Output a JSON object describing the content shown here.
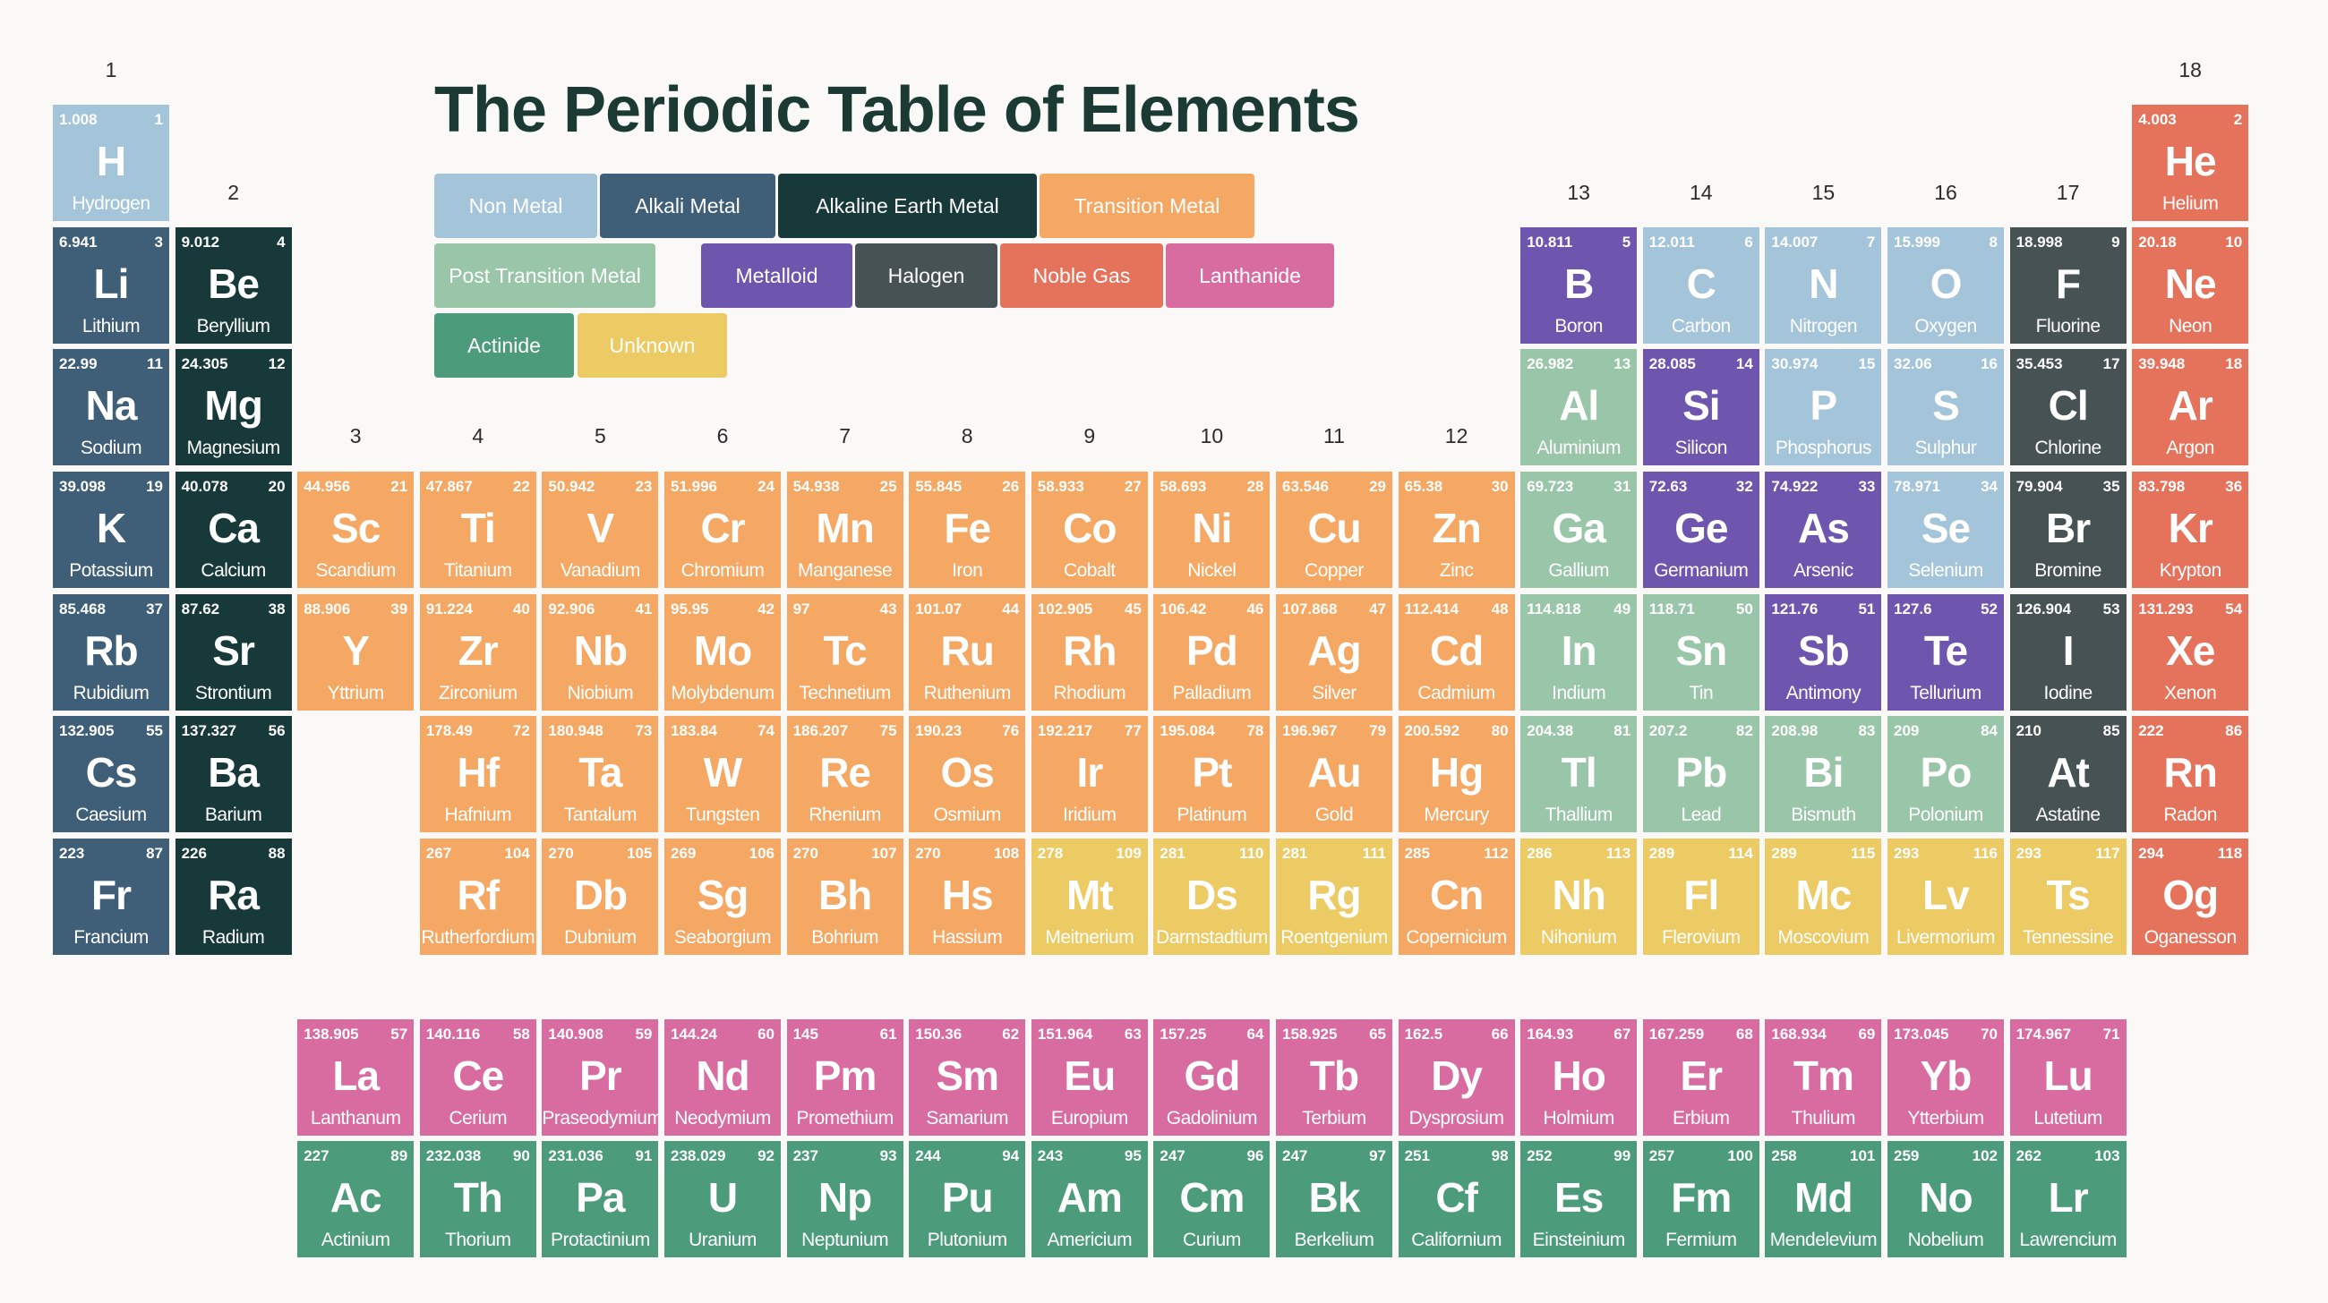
{
  "title": "The Periodic Table of Elements",
  "colors": {
    "non_metal": "#a4c5d9",
    "alkali_metal": "#3f5e78",
    "alkaline_earth_metal": "#17393a",
    "transition_metal": "#f4a863",
    "post_transition_metal": "#99c5a8",
    "metalloid": "#6e55ae",
    "halogen": "#465253",
    "noble_gas": "#e5735c",
    "lanthanide": "#d86ca1",
    "actinide": "#4c9b7a",
    "unknown": "#ecca64"
  },
  "legend": [
    {
      "label": "Non Metal",
      "cat": "non_metal"
    },
    {
      "label": "Alkali Metal",
      "cat": "alkali_metal"
    },
    {
      "label": "Alkaline Earth Metal",
      "cat": "alkaline_earth_metal"
    },
    {
      "label": "Transition Metal",
      "cat": "transition_metal"
    },
    {
      "label": "Post Transition Metal",
      "cat": "post_transition_metal"
    },
    {
      "label": "Metalloid",
      "cat": "metalloid"
    },
    {
      "label": "Halogen",
      "cat": "halogen"
    },
    {
      "label": "Noble Gas",
      "cat": "noble_gas"
    },
    {
      "label": "Lanthanide",
      "cat": "lanthanide"
    },
    {
      "label": "Actinide",
      "cat": "actinide"
    },
    {
      "label": "Unknown",
      "cat": "unknown"
    }
  ],
  "group_labels": [
    "1",
    "2",
    "3",
    "4",
    "5",
    "6",
    "7",
    "8",
    "9",
    "10",
    "11",
    "12",
    "13",
    "14",
    "15",
    "16",
    "17",
    "18"
  ],
  "elements": [
    {
      "n": 1,
      "s": "H",
      "name": "Hydrogen",
      "m": "1.008",
      "cat": "non_metal",
      "g": 1,
      "p": 1
    },
    {
      "n": 2,
      "s": "He",
      "name": "Helium",
      "m": "4.003",
      "cat": "noble_gas",
      "g": 18,
      "p": 1
    },
    {
      "n": 3,
      "s": "Li",
      "name": "Lithium",
      "m": "6.941",
      "cat": "alkali_metal",
      "g": 1,
      "p": 2
    },
    {
      "n": 4,
      "s": "Be",
      "name": "Beryllium",
      "m": "9.012",
      "cat": "alkaline_earth_metal",
      "g": 2,
      "p": 2
    },
    {
      "n": 5,
      "s": "B",
      "name": "Boron",
      "m": "10.811",
      "cat": "metalloid",
      "g": 13,
      "p": 2
    },
    {
      "n": 6,
      "s": "C",
      "name": "Carbon",
      "m": "12.011",
      "cat": "non_metal",
      "g": 14,
      "p": 2
    },
    {
      "n": 7,
      "s": "N",
      "name": "Nitrogen",
      "m": "14.007",
      "cat": "non_metal",
      "g": 15,
      "p": 2
    },
    {
      "n": 8,
      "s": "O",
      "name": "Oxygen",
      "m": "15.999",
      "cat": "non_metal",
      "g": 16,
      "p": 2
    },
    {
      "n": 9,
      "s": "F",
      "name": "Fluorine",
      "m": "18.998",
      "cat": "halogen",
      "g": 17,
      "p": 2
    },
    {
      "n": 10,
      "s": "Ne",
      "name": "Neon",
      "m": "20.18",
      "cat": "noble_gas",
      "g": 18,
      "p": 2
    },
    {
      "n": 11,
      "s": "Na",
      "name": "Sodium",
      "m": "22.99",
      "cat": "alkali_metal",
      "g": 1,
      "p": 3
    },
    {
      "n": 12,
      "s": "Mg",
      "name": "Magnesium",
      "m": "24.305",
      "cat": "alkaline_earth_metal",
      "g": 2,
      "p": 3
    },
    {
      "n": 13,
      "s": "Al",
      "name": "Aluminium",
      "m": "26.982",
      "cat": "post_transition_metal",
      "g": 13,
      "p": 3
    },
    {
      "n": 14,
      "s": "Si",
      "name": "Silicon",
      "m": "28.085",
      "cat": "metalloid",
      "g": 14,
      "p": 3
    },
    {
      "n": 15,
      "s": "P",
      "name": "Phosphorus",
      "m": "30.974",
      "cat": "non_metal",
      "g": 15,
      "p": 3
    },
    {
      "n": 16,
      "s": "S",
      "name": "Sulphur",
      "m": "32.06",
      "cat": "non_metal",
      "g": 16,
      "p": 3
    },
    {
      "n": 17,
      "s": "Cl",
      "name": "Chlorine",
      "m": "35.453",
      "cat": "halogen",
      "g": 17,
      "p": 3
    },
    {
      "n": 18,
      "s": "Ar",
      "name": "Argon",
      "m": "39.948",
      "cat": "noble_gas",
      "g": 18,
      "p": 3
    },
    {
      "n": 19,
      "s": "K",
      "name": "Potassium",
      "m": "39.098",
      "cat": "alkali_metal",
      "g": 1,
      "p": 4
    },
    {
      "n": 20,
      "s": "Ca",
      "name": "Calcium",
      "m": "40.078",
      "cat": "alkaline_earth_metal",
      "g": 2,
      "p": 4
    },
    {
      "n": 21,
      "s": "Sc",
      "name": "Scandium",
      "m": "44.956",
      "cat": "transition_metal",
      "g": 3,
      "p": 4
    },
    {
      "n": 22,
      "s": "Ti",
      "name": "Titanium",
      "m": "47.867",
      "cat": "transition_metal",
      "g": 4,
      "p": 4
    },
    {
      "n": 23,
      "s": "V",
      "name": "Vanadium",
      "m": "50.942",
      "cat": "transition_metal",
      "g": 5,
      "p": 4
    },
    {
      "n": 24,
      "s": "Cr",
      "name": "Chromium",
      "m": "51.996",
      "cat": "transition_metal",
      "g": 6,
      "p": 4
    },
    {
      "n": 25,
      "s": "Mn",
      "name": "Manganese",
      "m": "54.938",
      "cat": "transition_metal",
      "g": 7,
      "p": 4
    },
    {
      "n": 26,
      "s": "Fe",
      "name": "Iron",
      "m": "55.845",
      "cat": "transition_metal",
      "g": 8,
      "p": 4
    },
    {
      "n": 27,
      "s": "Co",
      "name": "Cobalt",
      "m": "58.933",
      "cat": "transition_metal",
      "g": 9,
      "p": 4
    },
    {
      "n": 28,
      "s": "Ni",
      "name": "Nickel",
      "m": "58.693",
      "cat": "transition_metal",
      "g": 10,
      "p": 4
    },
    {
      "n": 29,
      "s": "Cu",
      "name": "Copper",
      "m": "63.546",
      "cat": "transition_metal",
      "g": 11,
      "p": 4
    },
    {
      "n": 30,
      "s": "Zn",
      "name": "Zinc",
      "m": "65.38",
      "cat": "transition_metal",
      "g": 12,
      "p": 4
    },
    {
      "n": 31,
      "s": "Ga",
      "name": "Gallium",
      "m": "69.723",
      "cat": "post_transition_metal",
      "g": 13,
      "p": 4
    },
    {
      "n": 32,
      "s": "Ge",
      "name": "Germanium",
      "m": "72.63",
      "cat": "metalloid",
      "g": 14,
      "p": 4
    },
    {
      "n": 33,
      "s": "As",
      "name": "Arsenic",
      "m": "74.922",
      "cat": "metalloid",
      "g": 15,
      "p": 4
    },
    {
      "n": 34,
      "s": "Se",
      "name": "Selenium",
      "m": "78.971",
      "cat": "non_metal",
      "g": 16,
      "p": 4
    },
    {
      "n": 35,
      "s": "Br",
      "name": "Bromine",
      "m": "79.904",
      "cat": "halogen",
      "g": 17,
      "p": 4
    },
    {
      "n": 36,
      "s": "Kr",
      "name": "Krypton",
      "m": "83.798",
      "cat": "noble_gas",
      "g": 18,
      "p": 4
    },
    {
      "n": 37,
      "s": "Rb",
      "name": "Rubidium",
      "m": "85.468",
      "cat": "alkali_metal",
      "g": 1,
      "p": 5
    },
    {
      "n": 38,
      "s": "Sr",
      "name": "Strontium",
      "m": "87.62",
      "cat": "alkaline_earth_metal",
      "g": 2,
      "p": 5
    },
    {
      "n": 39,
      "s": "Y",
      "name": "Yttrium",
      "m": "88.906",
      "cat": "transition_metal",
      "g": 3,
      "p": 5
    },
    {
      "n": 40,
      "s": "Zr",
      "name": "Zirconium",
      "m": "91.224",
      "cat": "transition_metal",
      "g": 4,
      "p": 5
    },
    {
      "n": 41,
      "s": "Nb",
      "name": "Niobium",
      "m": "92.906",
      "cat": "transition_metal",
      "g": 5,
      "p": 5
    },
    {
      "n": 42,
      "s": "Mo",
      "name": "Molybdenum",
      "m": "95.95",
      "cat": "transition_metal",
      "g": 6,
      "p": 5
    },
    {
      "n": 43,
      "s": "Tc",
      "name": "Technetium",
      "m": "97",
      "cat": "transition_metal",
      "g": 7,
      "p": 5
    },
    {
      "n": 44,
      "s": "Ru",
      "name": "Ruthenium",
      "m": "101.07",
      "cat": "transition_metal",
      "g": 8,
      "p": 5
    },
    {
      "n": 45,
      "s": "Rh",
      "name": "Rhodium",
      "m": "102.905",
      "cat": "transition_metal",
      "g": 9,
      "p": 5
    },
    {
      "n": 46,
      "s": "Pd",
      "name": "Palladium",
      "m": "106.42",
      "cat": "transition_metal",
      "g": 10,
      "p": 5
    },
    {
      "n": 47,
      "s": "Ag",
      "name": "Silver",
      "m": "107.868",
      "cat": "transition_metal",
      "g": 11,
      "p": 5
    },
    {
      "n": 48,
      "s": "Cd",
      "name": "Cadmium",
      "m": "112.414",
      "cat": "transition_metal",
      "g": 12,
      "p": 5
    },
    {
      "n": 49,
      "s": "In",
      "name": "Indium",
      "m": "114.818",
      "cat": "post_transition_metal",
      "g": 13,
      "p": 5
    },
    {
      "n": 50,
      "s": "Sn",
      "name": "Tin",
      "m": "118.71",
      "cat": "post_transition_metal",
      "g": 14,
      "p": 5
    },
    {
      "n": 51,
      "s": "Sb",
      "name": "Antimony",
      "m": "121.76",
      "cat": "metalloid",
      "g": 15,
      "p": 5
    },
    {
      "n": 52,
      "s": "Te",
      "name": "Tellurium",
      "m": "127.6",
      "cat": "metalloid",
      "g": 16,
      "p": 5
    },
    {
      "n": 53,
      "s": "I",
      "name": "Iodine",
      "m": "126.904",
      "cat": "halogen",
      "g": 17,
      "p": 5
    },
    {
      "n": 54,
      "s": "Xe",
      "name": "Xenon",
      "m": "131.293",
      "cat": "noble_gas",
      "g": 18,
      "p": 5
    },
    {
      "n": 55,
      "s": "Cs",
      "name": "Caesium",
      "m": "132.905",
      "cat": "alkali_metal",
      "g": 1,
      "p": 6
    },
    {
      "n": 56,
      "s": "Ba",
      "name": "Barium",
      "m": "137.327",
      "cat": "alkaline_earth_metal",
      "g": 2,
      "p": 6
    },
    {
      "n": 72,
      "s": "Hf",
      "name": "Hafnium",
      "m": "178.49",
      "cat": "transition_metal",
      "g": 4,
      "p": 6
    },
    {
      "n": 73,
      "s": "Ta",
      "name": "Tantalum",
      "m": "180.948",
      "cat": "transition_metal",
      "g": 5,
      "p": 6
    },
    {
      "n": 74,
      "s": "W",
      "name": "Tungsten",
      "m": "183.84",
      "cat": "transition_metal",
      "g": 6,
      "p": 6
    },
    {
      "n": 75,
      "s": "Re",
      "name": "Rhenium",
      "m": "186.207",
      "cat": "transition_metal",
      "g": 7,
      "p": 6
    },
    {
      "n": 76,
      "s": "Os",
      "name": "Osmium",
      "m": "190.23",
      "cat": "transition_metal",
      "g": 8,
      "p": 6
    },
    {
      "n": 77,
      "s": "Ir",
      "name": "Iridium",
      "m": "192.217",
      "cat": "transition_metal",
      "g": 9,
      "p": 6
    },
    {
      "n": 78,
      "s": "Pt",
      "name": "Platinum",
      "m": "195.084",
      "cat": "transition_metal",
      "g": 10,
      "p": 6
    },
    {
      "n": 79,
      "s": "Au",
      "name": "Gold",
      "m": "196.967",
      "cat": "transition_metal",
      "g": 11,
      "p": 6
    },
    {
      "n": 80,
      "s": "Hg",
      "name": "Mercury",
      "m": "200.592",
      "cat": "transition_metal",
      "g": 12,
      "p": 6
    },
    {
      "n": 81,
      "s": "Tl",
      "name": "Thallium",
      "m": "204.38",
      "cat": "post_transition_metal",
      "g": 13,
      "p": 6
    },
    {
      "n": 82,
      "s": "Pb",
      "name": "Lead",
      "m": "207.2",
      "cat": "post_transition_metal",
      "g": 14,
      "p": 6
    },
    {
      "n": 83,
      "s": "Bi",
      "name": "Bismuth",
      "m": "208.98",
      "cat": "post_transition_metal",
      "g": 15,
      "p": 6
    },
    {
      "n": 84,
      "s": "Po",
      "name": "Polonium",
      "m": "209",
      "cat": "post_transition_metal",
      "g": 16,
      "p": 6
    },
    {
      "n": 85,
      "s": "At",
      "name": "Astatine",
      "m": "210",
      "cat": "halogen",
      "g": 17,
      "p": 6
    },
    {
      "n": 86,
      "s": "Rn",
      "name": "Radon",
      "m": "222",
      "cat": "noble_gas",
      "g": 18,
      "p": 6
    },
    {
      "n": 87,
      "s": "Fr",
      "name": "Francium",
      "m": "223",
      "cat": "alkali_metal",
      "g": 1,
      "p": 7
    },
    {
      "n": 88,
      "s": "Ra",
      "name": "Radium",
      "m": "226",
      "cat": "alkaline_earth_metal",
      "g": 2,
      "p": 7
    },
    {
      "n": 104,
      "s": "Rf",
      "name": "Rutherfordium",
      "m": "267",
      "cat": "transition_metal",
      "g": 4,
      "p": 7
    },
    {
      "n": 105,
      "s": "Db",
      "name": "Dubnium",
      "m": "270",
      "cat": "transition_metal",
      "g": 5,
      "p": 7
    },
    {
      "n": 106,
      "s": "Sg",
      "name": "Seaborgium",
      "m": "269",
      "cat": "transition_metal",
      "g": 6,
      "p": 7
    },
    {
      "n": 107,
      "s": "Bh",
      "name": "Bohrium",
      "m": "270",
      "cat": "transition_metal",
      "g": 7,
      "p": 7
    },
    {
      "n": 108,
      "s": "Hs",
      "name": "Hassium",
      "m": "270",
      "cat": "transition_metal",
      "g": 8,
      "p": 7
    },
    {
      "n": 109,
      "s": "Mt",
      "name": "Meitnerium",
      "m": "278",
      "cat": "unknown",
      "g": 9,
      "p": 7
    },
    {
      "n": 110,
      "s": "Ds",
      "name": "Darmstadtium",
      "m": "281",
      "cat": "unknown",
      "g": 10,
      "p": 7
    },
    {
      "n": 111,
      "s": "Rg",
      "name": "Roentgenium",
      "m": "281",
      "cat": "unknown",
      "g": 11,
      "p": 7
    },
    {
      "n": 112,
      "s": "Cn",
      "name": "Copernicium",
      "m": "285",
      "cat": "transition_metal",
      "g": 12,
      "p": 7
    },
    {
      "n": 113,
      "s": "Nh",
      "name": "Nihonium",
      "m": "286",
      "cat": "unknown",
      "g": 13,
      "p": 7
    },
    {
      "n": 114,
      "s": "Fl",
      "name": "Flerovium",
      "m": "289",
      "cat": "unknown",
      "g": 14,
      "p": 7
    },
    {
      "n": 115,
      "s": "Mc",
      "name": "Moscovium",
      "m": "289",
      "cat": "unknown",
      "g": 15,
      "p": 7
    },
    {
      "n": 116,
      "s": "Lv",
      "name": "Livermorium",
      "m": "293",
      "cat": "unknown",
      "g": 16,
      "p": 7
    },
    {
      "n": 117,
      "s": "Ts",
      "name": "Tennessine",
      "m": "293",
      "cat": "unknown",
      "g": 17,
      "p": 7
    },
    {
      "n": 118,
      "s": "Og",
      "name": "Oganesson",
      "m": "294",
      "cat": "noble_gas",
      "g": 18,
      "p": 7
    },
    {
      "n": 57,
      "s": "La",
      "name": "Lanthanum",
      "m": "138.905",
      "cat": "lanthanide",
      "g": 3,
      "p": 8
    },
    {
      "n": 58,
      "s": "Ce",
      "name": "Cerium",
      "m": "140.116",
      "cat": "lanthanide",
      "g": 4,
      "p": 8
    },
    {
      "n": 59,
      "s": "Pr",
      "name": "Praseodymium",
      "m": "140.908",
      "cat": "lanthanide",
      "g": 5,
      "p": 8
    },
    {
      "n": 60,
      "s": "Nd",
      "name": "Neodymium",
      "m": "144.24",
      "cat": "lanthanide",
      "g": 6,
      "p": 8
    },
    {
      "n": 61,
      "s": "Pm",
      "name": "Promethium",
      "m": "145",
      "cat": "lanthanide",
      "g": 7,
      "p": 8
    },
    {
      "n": 62,
      "s": "Sm",
      "name": "Samarium",
      "m": "150.36",
      "cat": "lanthanide",
      "g": 8,
      "p": 8
    },
    {
      "n": 63,
      "s": "Eu",
      "name": "Europium",
      "m": "151.964",
      "cat": "lanthanide",
      "g": 9,
      "p": 8
    },
    {
      "n": 64,
      "s": "Gd",
      "name": "Gadolinium",
      "m": "157.25",
      "cat": "lanthanide",
      "g": 10,
      "p": 8
    },
    {
      "n": 65,
      "s": "Tb",
      "name": "Terbium",
      "m": "158.925",
      "cat": "lanthanide",
      "g": 11,
      "p": 8
    },
    {
      "n": 66,
      "s": "Dy",
      "name": "Dysprosium",
      "m": "162.5",
      "cat": "lanthanide",
      "g": 12,
      "p": 8
    },
    {
      "n": 67,
      "s": "Ho",
      "name": "Holmium",
      "m": "164.93",
      "cat": "lanthanide",
      "g": 13,
      "p": 8
    },
    {
      "n": 68,
      "s": "Er",
      "name": "Erbium",
      "m": "167.259",
      "cat": "lanthanide",
      "g": 14,
      "p": 8
    },
    {
      "n": 69,
      "s": "Tm",
      "name": "Thulium",
      "m": "168.934",
      "cat": "lanthanide",
      "g": 15,
      "p": 8
    },
    {
      "n": 70,
      "s": "Yb",
      "name": "Ytterbium",
      "m": "173.045",
      "cat": "lanthanide",
      "g": 16,
      "p": 8
    },
    {
      "n": 71,
      "s": "Lu",
      "name": "Lutetium",
      "m": "174.967",
      "cat": "lanthanide",
      "g": 17,
      "p": 8
    },
    {
      "n": 89,
      "s": "Ac",
      "name": "Actinium",
      "m": "227",
      "cat": "actinide",
      "g": 3,
      "p": 9
    },
    {
      "n": 90,
      "s": "Th",
      "name": "Thorium",
      "m": "232.038",
      "cat": "actinide",
      "g": 4,
      "p": 9
    },
    {
      "n": 91,
      "s": "Pa",
      "name": "Protactinium",
      "m": "231.036",
      "cat": "actinide",
      "g": 5,
      "p": 9
    },
    {
      "n": 92,
      "s": "U",
      "name": "Uranium",
      "m": "238.029",
      "cat": "actinide",
      "g": 6,
      "p": 9
    },
    {
      "n": 93,
      "s": "Np",
      "name": "Neptunium",
      "m": "237",
      "cat": "actinide",
      "g": 7,
      "p": 9
    },
    {
      "n": 94,
      "s": "Pu",
      "name": "Plutonium",
      "m": "244",
      "cat": "actinide",
      "g": 8,
      "p": 9
    },
    {
      "n": 95,
      "s": "Am",
      "name": "Americium",
      "m": "243",
      "cat": "actinide",
      "g": 9,
      "p": 9
    },
    {
      "n": 96,
      "s": "Cm",
      "name": "Curium",
      "m": "247",
      "cat": "actinide",
      "g": 10,
      "p": 9
    },
    {
      "n": 97,
      "s": "Bk",
      "name": "Berkelium",
      "m": "247",
      "cat": "actinide",
      "g": 11,
      "p": 9
    },
    {
      "n": 98,
      "s": "Cf",
      "name": "Californium",
      "m": "251",
      "cat": "actinide",
      "g": 12,
      "p": 9
    },
    {
      "n": 99,
      "s": "Es",
      "name": "Einsteinium",
      "m": "252",
      "cat": "actinide",
      "g": 13,
      "p": 9
    },
    {
      "n": 100,
      "s": "Fm",
      "name": "Fermium",
      "m": "257",
      "cat": "actinide",
      "g": 14,
      "p": 9
    },
    {
      "n": 101,
      "s": "Md",
      "name": "Mendelevium",
      "m": "258",
      "cat": "actinide",
      "g": 15,
      "p": 9
    },
    {
      "n": 102,
      "s": "No",
      "name": "Nobelium",
      "m": "259",
      "cat": "actinide",
      "g": 16,
      "p": 9
    },
    {
      "n": 103,
      "s": "Lr",
      "name": "Lawrencium",
      "m": "262",
      "cat": "actinide",
      "g": 17,
      "p": 9
    }
  ]
}
